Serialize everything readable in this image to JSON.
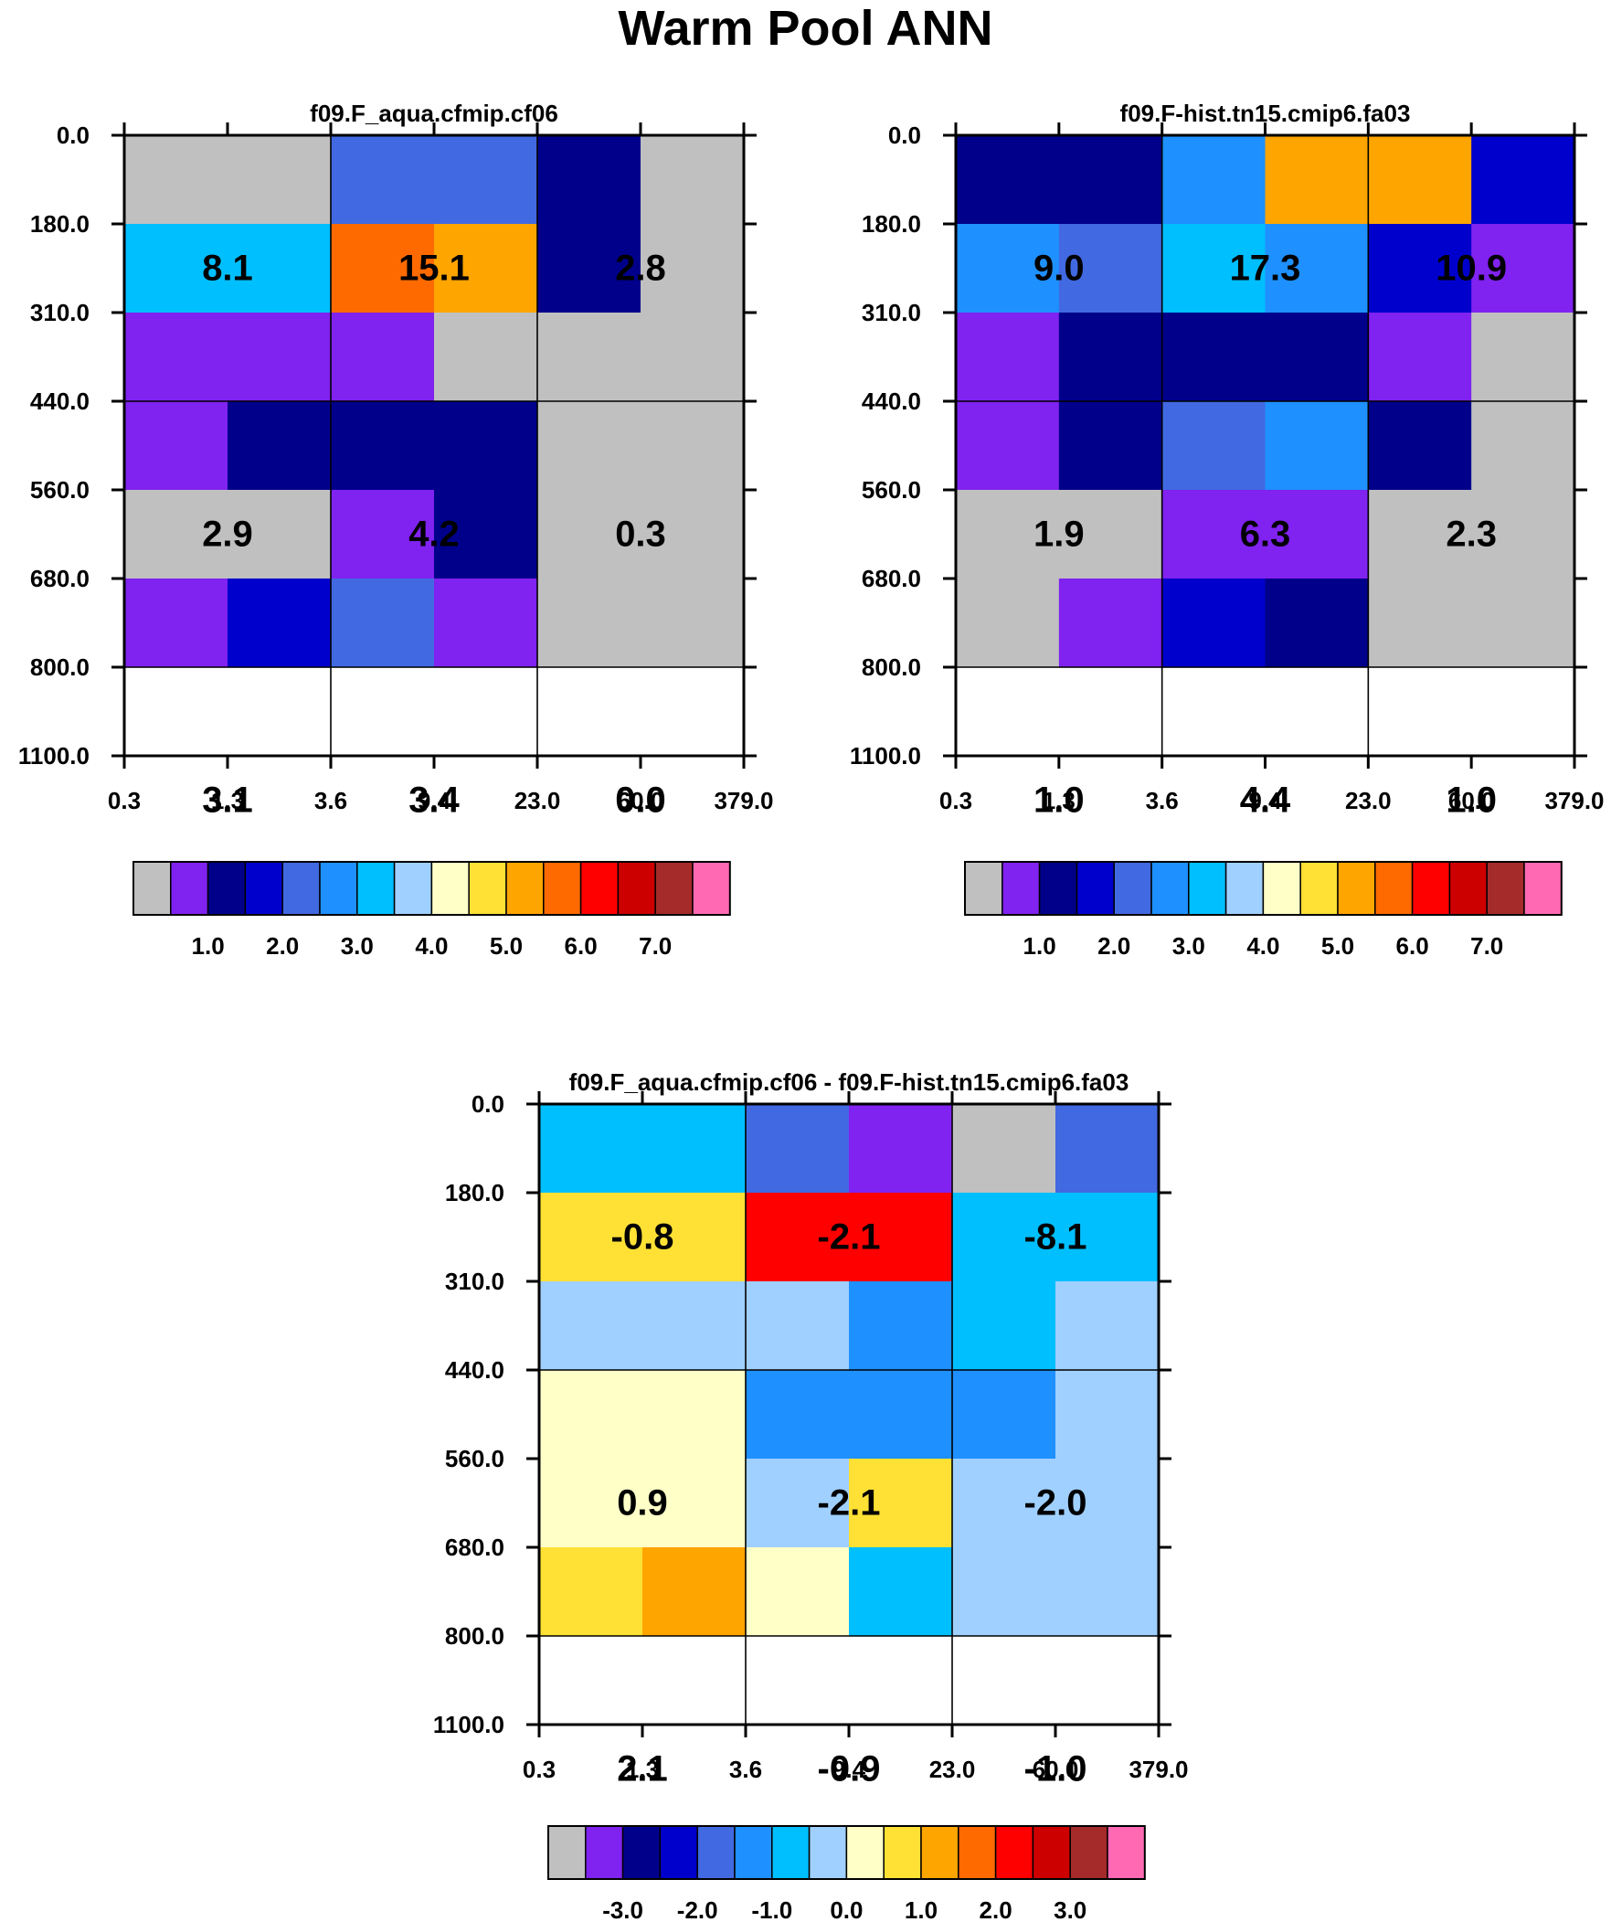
{
  "figure_title": "Warm Pool ANN",
  "palette": [
    "#c0c0c0",
    "#8022f0",
    "#00008b",
    "#0000cd",
    "#4169e1",
    "#1e90ff",
    "#00bfff",
    "#a0d0ff",
    "#ffffc8",
    "#ffe135",
    "#ffa500",
    "#ff6a00",
    "#ff0000",
    "#cd0000",
    "#a52a2a",
    "#ff69b4"
  ],
  "chart_data": [
    {
      "type": "heatmap",
      "title": "f09.F_aqua.cfmip.cf06",
      "x_ticks": [
        "0.3",
        "1.3",
        "3.6",
        "9.4",
        "23.0",
        "60.0",
        "379.0"
      ],
      "y_ticks": [
        "0.0",
        "180.0",
        "310.0",
        "440.0",
        "560.0",
        "680.0",
        "800.0",
        "1100.0"
      ],
      "cells": [
        [
          0,
          0,
          4,
          4,
          2,
          0
        ],
        [
          6,
          6,
          11,
          10,
          2,
          0
        ],
        [
          1,
          1,
          1,
          0,
          0,
          0
        ],
        [
          1,
          2,
          2,
          2,
          0,
          0
        ],
        [
          0,
          0,
          1,
          2,
          0,
          0
        ],
        [
          1,
          3,
          4,
          1,
          0,
          0
        ]
      ],
      "block_labels": [
        [
          "8.1",
          "15.1",
          "2.8"
        ],
        [
          "2.9",
          "4.2",
          "0.3"
        ],
        [
          "3.1",
          "3.4",
          "0.0"
        ]
      ],
      "colorbar_labels": [
        "1.0",
        "2.0",
        "3.0",
        "4.0",
        "5.0",
        "6.0",
        "7.0"
      ]
    },
    {
      "type": "heatmap",
      "title": "f09.F-hist.tn15.cmip6.fa03",
      "x_ticks": [
        "0.3",
        "1.3",
        "3.6",
        "9.4",
        "23.0",
        "60.0",
        "379.0"
      ],
      "y_ticks": [
        "0.0",
        "180.0",
        "310.0",
        "440.0",
        "560.0",
        "680.0",
        "800.0",
        "1100.0"
      ],
      "cells": [
        [
          2,
          2,
          5,
          10,
          10,
          3
        ],
        [
          5,
          4,
          6,
          5,
          3,
          1
        ],
        [
          1,
          2,
          2,
          2,
          1,
          0
        ],
        [
          1,
          2,
          4,
          5,
          2,
          0
        ],
        [
          0,
          0,
          1,
          1,
          0,
          0
        ],
        [
          0,
          1,
          3,
          2,
          0,
          0
        ]
      ],
      "block_labels": [
        [
          "9.0",
          "17.3",
          "10.9"
        ],
        [
          "1.9",
          "6.3",
          "2.3"
        ],
        [
          "1.0",
          "4.4",
          "1.0"
        ]
      ],
      "colorbar_labels": [
        "1.0",
        "2.0",
        "3.0",
        "4.0",
        "5.0",
        "6.0",
        "7.0"
      ]
    },
    {
      "type": "heatmap",
      "title": "f09.F_aqua.cfmip.cf06 - f09.F-hist.tn15.cmip6.fa03",
      "x_ticks": [
        "0.3",
        "1.3",
        "3.6",
        "9.4",
        "23.0",
        "60.0",
        "379.0"
      ],
      "y_ticks": [
        "0.0",
        "180.0",
        "310.0",
        "440.0",
        "560.0",
        "680.0",
        "800.0",
        "1100.0"
      ],
      "cells": [
        [
          6,
          6,
          4,
          1,
          0,
          4
        ],
        [
          9,
          9,
          12,
          12,
          6,
          6
        ],
        [
          7,
          7,
          7,
          5,
          6,
          7
        ],
        [
          8,
          8,
          5,
          5,
          5,
          7
        ],
        [
          8,
          8,
          7,
          9,
          7,
          7
        ],
        [
          9,
          10,
          8,
          6,
          7,
          7
        ]
      ],
      "block_labels": [
        [
          "-0.8",
          "-2.1",
          "-8.1"
        ],
        [
          "0.9",
          "-2.1",
          "-2.0"
        ],
        [
          "2.1",
          "-0.9",
          "-1.0"
        ]
      ],
      "colorbar_labels": [
        "-3.0",
        "-2.0",
        "-1.0",
        "0.0",
        "1.0",
        "2.0",
        "3.0"
      ]
    }
  ]
}
